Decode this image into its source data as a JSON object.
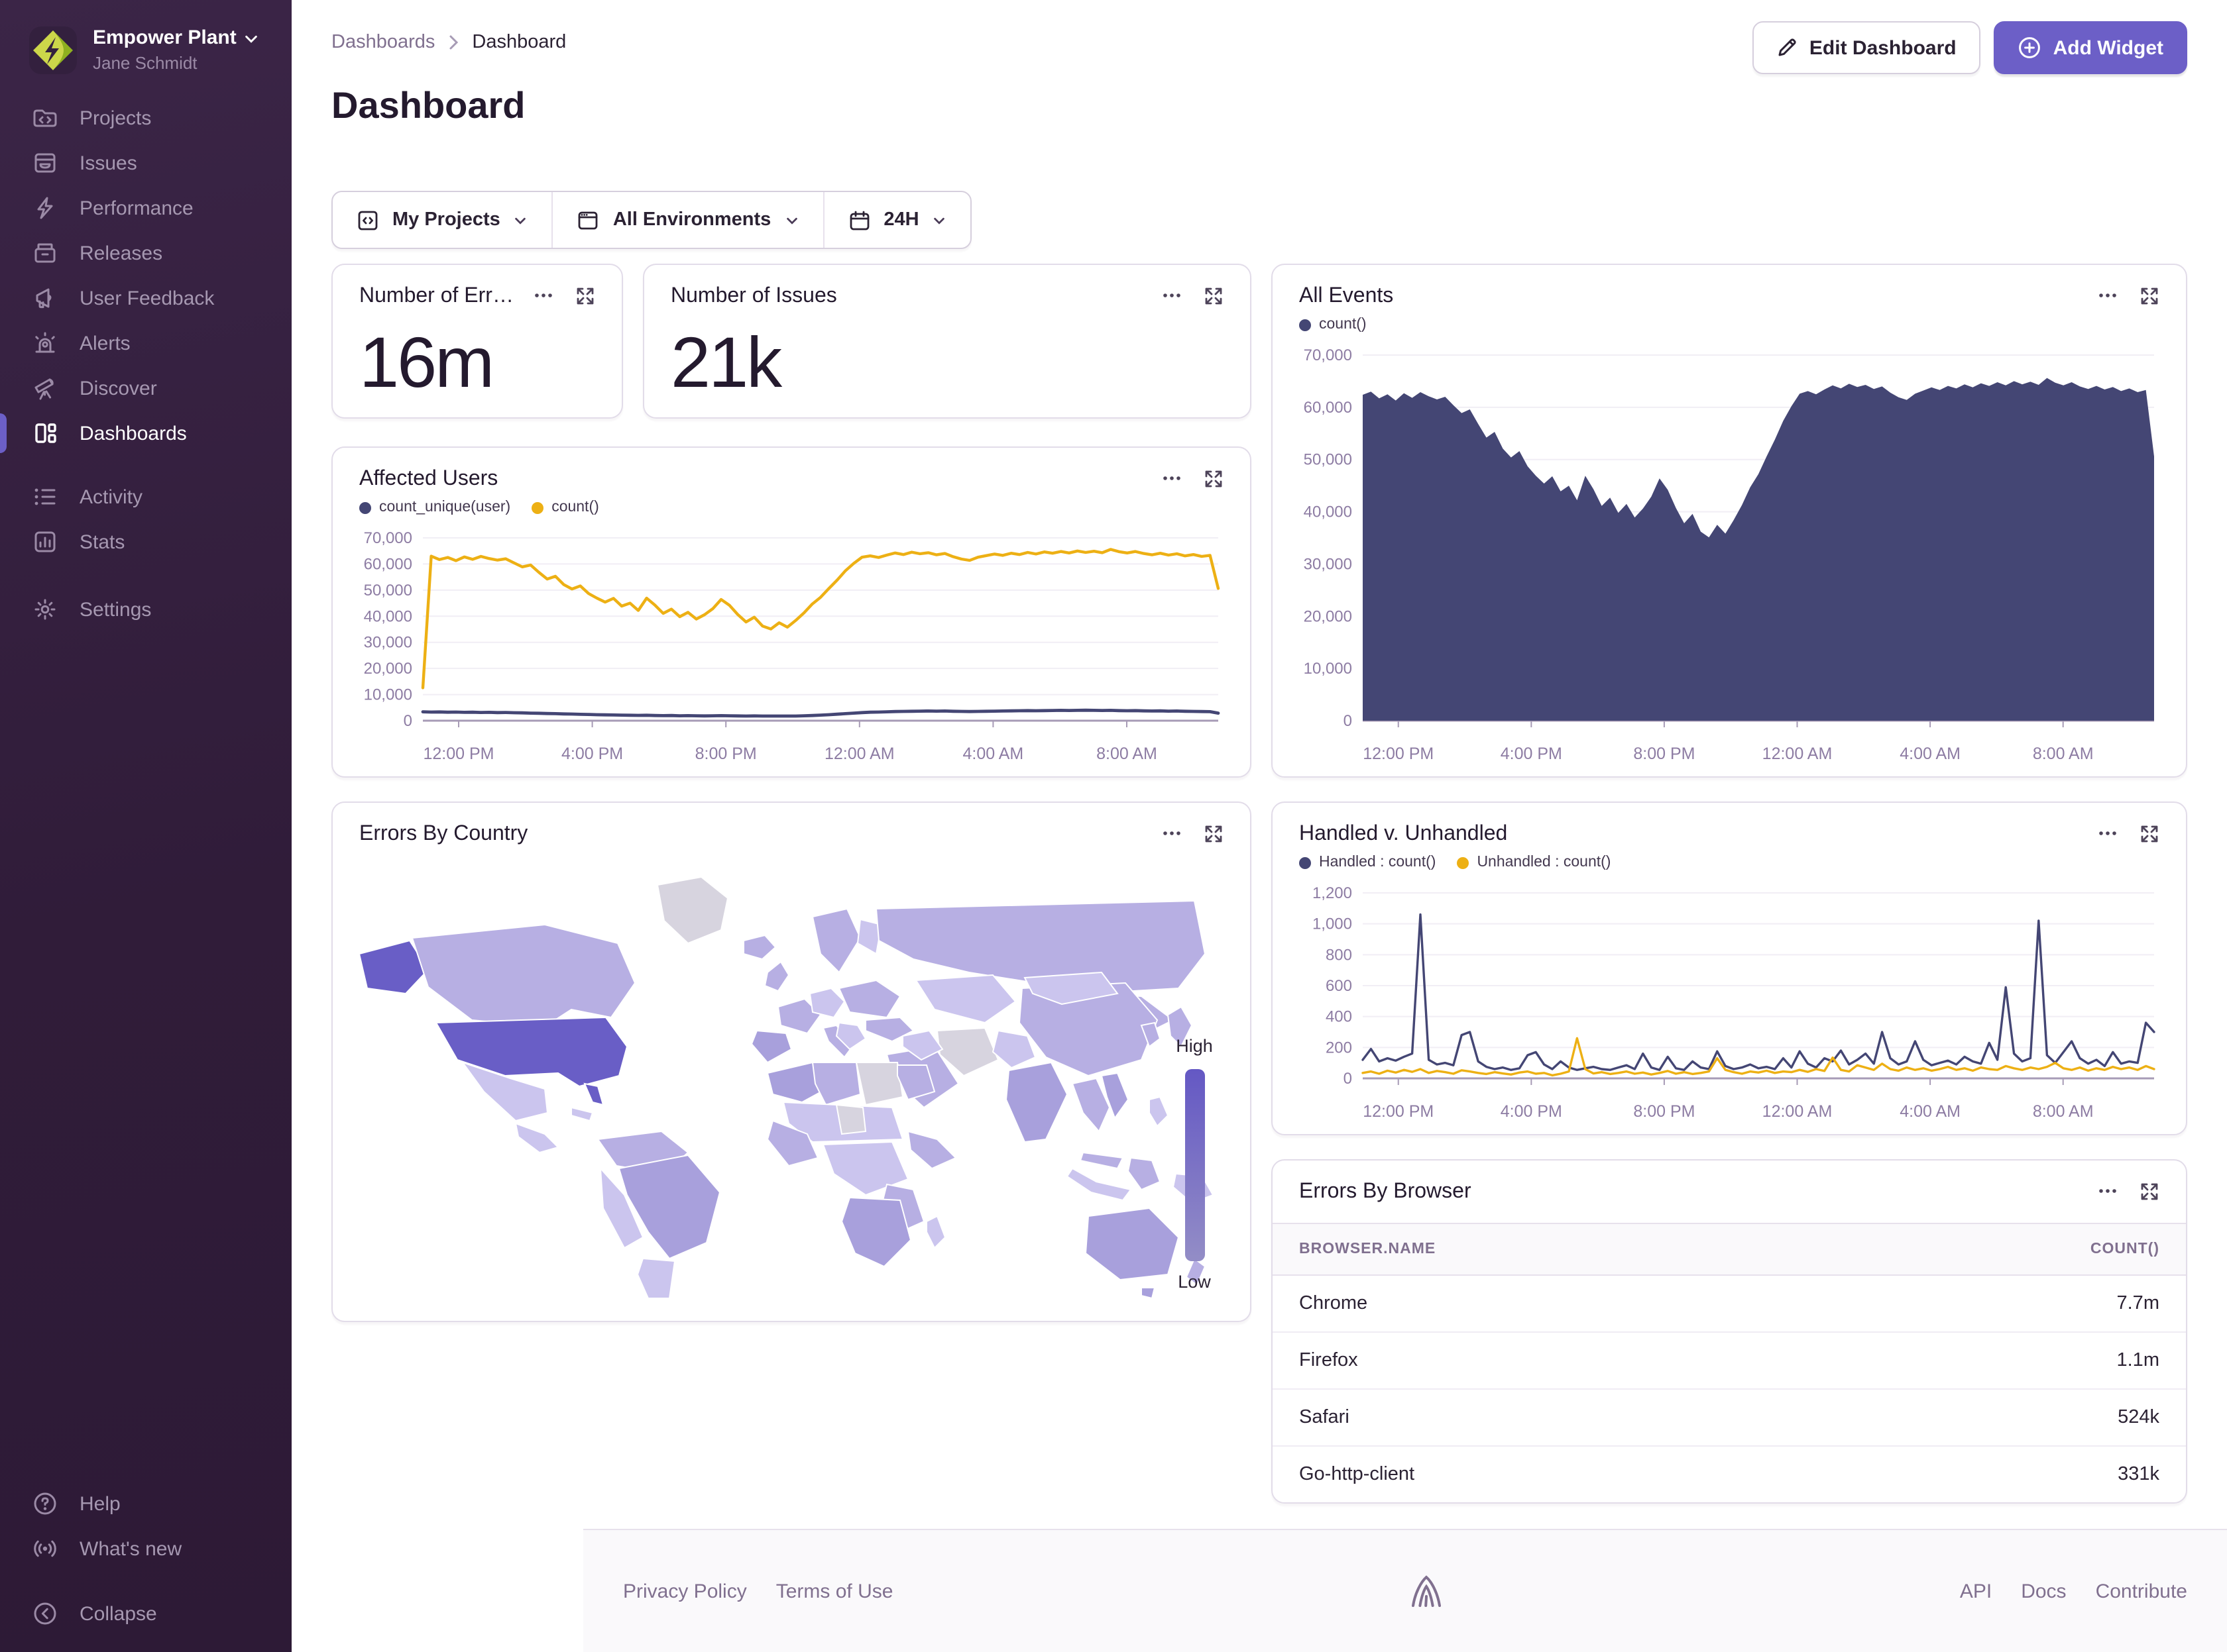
{
  "org": {
    "name": "Empower Plant",
    "user": "Jane Schmidt"
  },
  "sidebar": {
    "items": [
      {
        "label": "Projects"
      },
      {
        "label": "Issues"
      },
      {
        "label": "Performance"
      },
      {
        "label": "Releases"
      },
      {
        "label": "User Feedback"
      },
      {
        "label": "Alerts"
      },
      {
        "label": "Discover"
      },
      {
        "label": "Dashboards",
        "active": true
      },
      {
        "label": "Activity"
      },
      {
        "label": "Stats"
      },
      {
        "label": "Settings"
      }
    ],
    "footer_items": [
      {
        "label": "Help"
      },
      {
        "label": "What's new"
      },
      {
        "label": "Collapse"
      }
    ]
  },
  "breadcrumb": {
    "parent": "Dashboards",
    "current": "Dashboard"
  },
  "page": {
    "title": "Dashboard"
  },
  "actions": {
    "edit": "Edit Dashboard",
    "add": "Add Widget"
  },
  "filters": {
    "projects": "My Projects",
    "environments": "All Environments",
    "time": "24H"
  },
  "widgets": {
    "errors_number": {
      "title": "Number of Err…",
      "value": "16m"
    },
    "issues_number": {
      "title": "Number of Issues",
      "value": "21k"
    },
    "all_events": {
      "title": "All Events"
    },
    "affected_users": {
      "title": "Affected Users"
    },
    "errors_by_country": {
      "title": "Errors By Country",
      "legend_high": "High",
      "legend_low": "Low"
    },
    "handled": {
      "title": "Handled v. Unhandled"
    },
    "errors_by_browser": {
      "title": "Errors By Browser"
    }
  },
  "footer": {
    "links_left": [
      "Privacy Policy",
      "Terms of Use"
    ],
    "links_right": [
      "API",
      "Docs",
      "Contribute"
    ]
  },
  "colors": {
    "accent": "#6C5FC7",
    "chart_navy": "#444674",
    "chart_yellow": "#EDB014",
    "sidebar_top": "#3b2547",
    "sidebar_bottom": "#2d1a36",
    "map_legend_top": "#6458C4",
    "map_legend_bottom": "#938DC6"
  },
  "chart_data": [
    {
      "id": "all_events",
      "type": "area",
      "title": "All Events",
      "ylim": [
        0,
        70000
      ],
      "yticks": [
        0,
        10000,
        20000,
        30000,
        40000,
        50000,
        60000,
        70000
      ],
      "x_tick_labels": [
        "12:00 PM",
        "4:00 PM",
        "8:00 PM",
        "12:00 AM",
        "4:00 AM",
        "8:00 AM"
      ],
      "x_tick_pos": [
        0.045,
        0.213,
        0.381,
        0.549,
        0.717,
        0.885
      ],
      "x_range": "last 24 hours",
      "series": [
        {
          "name": "count()",
          "color": "#444674",
          "area": true,
          "values": [
            62400,
            63000,
            61700,
            62500,
            61300,
            62700,
            61800,
            62900,
            62100,
            61500,
            62000,
            60400,
            58900,
            59600,
            56800,
            54200,
            55300,
            52100,
            50400,
            51600,
            48700,
            46900,
            45400,
            46800,
            43900,
            45000,
            42200,
            46900,
            44300,
            41100,
            42700,
            39800,
            41500,
            38900,
            40600,
            42900,
            46400,
            44200,
            40700,
            37800,
            39600,
            36200,
            35100,
            37500,
            35800,
            38400,
            41300,
            44700,
            47200,
            50600,
            53800,
            57400,
            60200,
            62600,
            63100,
            62500,
            63400,
            64200,
            63600,
            64500,
            63900,
            64300,
            63500,
            64000,
            62800,
            61900,
            61400,
            62600,
            63200,
            63800,
            63300,
            64100,
            63600,
            64400,
            63800,
            64600,
            64100,
            64800,
            64200,
            65000,
            64400,
            64900,
            64300,
            65600,
            64700,
            64200,
            64800,
            64000,
            63500,
            64100,
            63400,
            63900,
            63100,
            63600,
            62900,
            63300,
            50600
          ]
        }
      ]
    },
    {
      "id": "affected_users",
      "type": "line",
      "title": "Affected Users",
      "ylim": [
        0,
        70000
      ],
      "yticks": [
        0,
        10000,
        20000,
        30000,
        40000,
        50000,
        60000,
        70000
      ],
      "x_tick_labels": [
        "12:00 PM",
        "4:00 PM",
        "8:00 PM",
        "12:00 AM",
        "4:00 AM",
        "8:00 AM"
      ],
      "x_tick_pos": [
        0.045,
        0.213,
        0.381,
        0.549,
        0.717,
        0.885
      ],
      "x_range": "last 24 hours",
      "series": [
        {
          "name": "count_unique(user)",
          "color": "#444674",
          "width": 2.4,
          "values": [
            3400,
            3300,
            3350,
            3250,
            3300,
            3200,
            3250,
            3150,
            3200,
            3100,
            3150,
            3050,
            3000,
            2900,
            2850,
            2750,
            2700,
            2600,
            2550,
            2450,
            2400,
            2300,
            2250,
            2200,
            2150,
            2100,
            2050,
            2100,
            2000,
            1950,
            2000,
            1900,
            1950,
            1900,
            1850,
            1900,
            1950,
            1900,
            1850,
            1800,
            1850,
            1800,
            1750,
            1800,
            1750,
            1800,
            1900,
            2000,
            2150,
            2300,
            2500,
            2700,
            2900,
            3100,
            3250,
            3300,
            3400,
            3500,
            3550,
            3600,
            3650,
            3700,
            3650,
            3700,
            3600,
            3550,
            3500,
            3550,
            3600,
            3650,
            3700,
            3750,
            3800,
            3850,
            3800,
            3850,
            3900,
            3950,
            3900,
            3950,
            4000,
            3950,
            3900,
            3950,
            3850,
            3800,
            3850,
            3750,
            3700,
            3750,
            3650,
            3700,
            3600,
            3550,
            3500,
            3450,
            2900
          ]
        },
        {
          "name": "count()",
          "color": "#EDB014",
          "width": 2.2,
          "values": [
            12600,
            63000,
            61700,
            62500,
            61300,
            62700,
            61800,
            62900,
            62100,
            61500,
            62000,
            60400,
            58900,
            59600,
            56800,
            54200,
            55300,
            52100,
            50400,
            51600,
            48700,
            46900,
            45400,
            46800,
            43900,
            45000,
            42200,
            46900,
            44300,
            41100,
            42700,
            39800,
            41500,
            38900,
            40600,
            42900,
            46400,
            44200,
            40700,
            37800,
            39600,
            36200,
            35100,
            37500,
            35800,
            38400,
            41300,
            44700,
            47200,
            50600,
            53800,
            57400,
            60200,
            62600,
            63100,
            62500,
            63400,
            64200,
            63600,
            64500,
            63900,
            64300,
            63500,
            64000,
            62800,
            61900,
            61400,
            62600,
            63200,
            63800,
            63300,
            64100,
            63600,
            64400,
            63800,
            64600,
            64100,
            64800,
            64200,
            65000,
            64400,
            64900,
            64300,
            65600,
            64700,
            64200,
            64800,
            64000,
            63500,
            64100,
            63400,
            63900,
            63100,
            63600,
            62900,
            63300,
            50600
          ]
        }
      ]
    },
    {
      "id": "handled_unhandled",
      "type": "line",
      "title": "Handled v. Unhandled",
      "ylim": [
        0,
        1200
      ],
      "yticks": [
        0,
        200,
        400,
        600,
        800,
        1000,
        1200
      ],
      "x_tick_labels": [
        "12:00 PM",
        "4:00 PM",
        "8:00 PM",
        "12:00 AM",
        "4:00 AM",
        "8:00 AM"
      ],
      "x_tick_pos": [
        0.045,
        0.213,
        0.381,
        0.549,
        0.717,
        0.885
      ],
      "x_range": "last 24 hours",
      "series": [
        {
          "name": "Handled : count()",
          "color": "#444674",
          "width": 1.7,
          "values": [
            120,
            190,
            110,
            130,
            115,
            140,
            160,
            1060,
            120,
            90,
            100,
            85,
            280,
            300,
            110,
            75,
            60,
            70,
            55,
            65,
            150,
            170,
            90,
            60,
            110,
            70,
            55,
            65,
            75,
            60,
            55,
            70,
            85,
            60,
            160,
            70,
            55,
            140,
            65,
            55,
            110,
            70,
            60,
            175,
            80,
            60,
            70,
            90,
            65,
            75,
            60,
            130,
            70,
            175,
            95,
            70,
            130,
            110,
            180,
            90,
            120,
            160,
            95,
            300,
            130,
            90,
            110,
            240,
            120,
            85,
            100,
            115,
            90,
            140,
            110,
            95,
            230,
            120,
            590,
            160,
            110,
            130,
            1020,
            150,
            100,
            170,
            240,
            130,
            95,
            120,
            80,
            170,
            95,
            110,
            100,
            360,
            300
          ]
        },
        {
          "name": "Unhandled : count()",
          "color": "#EDB014",
          "width": 1.7,
          "values": [
            35,
            45,
            30,
            50,
            38,
            55,
            42,
            60,
            35,
            48,
            40,
            30,
            52,
            45,
            35,
            28,
            40,
            32,
            25,
            38,
            45,
            30,
            35,
            20,
            30,
            45,
            260,
            60,
            32,
            40,
            28,
            35,
            45,
            30,
            38,
            25,
            35,
            48,
            30,
            40,
            28,
            35,
            45,
            130,
            55,
            40,
            30,
            45,
            38,
            50,
            35,
            45,
            40,
            55,
            42,
            60,
            48,
            135,
            55,
            45,
            85,
            70,
            55,
            95,
            60,
            50,
            70,
            55,
            65,
            50,
            60,
            75,
            55,
            65,
            50,
            70,
            60,
            55,
            80,
            65,
            55,
            70,
            60,
            75,
            100,
            65,
            55,
            70,
            50,
            65,
            55,
            75,
            60,
            70,
            55,
            80,
            60
          ]
        }
      ]
    },
    {
      "id": "errors_by_country",
      "type": "choropleth",
      "title": "Errors By Country",
      "legend": {
        "high": "High",
        "low": "Low"
      },
      "palette": {
        "t1": "#695EC6",
        "t2": "#A8A0DC",
        "t3": "#B7AFE3",
        "t4": "#CBC5EE",
        "t0": "#D7D4DF"
      },
      "tiers_meaning": {
        "t1": "highest errors (United States, Alaska)",
        "t2": "high (Brazil, India, Australia, Iberia, southern Africa)",
        "t3": "medium (Canada, Russia, China, most of Europe and Asia)",
        "t4": "low (Mexico, Argentina, central Asia, parts of Africa)",
        "t0": "no data (Greenland, Iran, Libya and others)"
      }
    },
    {
      "id": "errors_by_browser",
      "type": "table",
      "title": "Errors By Browser",
      "columns": [
        "BROWSER.NAME",
        "COUNT()"
      ],
      "rows": [
        [
          "Chrome",
          "7.7m"
        ],
        [
          "Firefox",
          "1.1m"
        ],
        [
          "Safari",
          "524k"
        ],
        [
          "Go-http-client",
          "331k"
        ]
      ]
    }
  ]
}
